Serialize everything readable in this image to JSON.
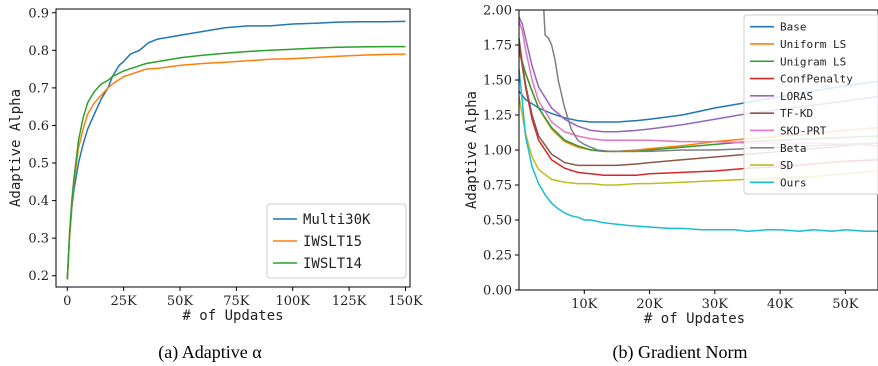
{
  "captions": [
    "(a) Adaptive α",
    "(b) Gradient Norm"
  ],
  "chart_data": [
    {
      "type": "line",
      "xlabel": "# of Updates",
      "ylabel": "Adaptive Alpha",
      "xlim": [
        -5000,
        152000
      ],
      "ylim": [
        0.17,
        0.91
      ],
      "xticks": [
        0,
        25000,
        50000,
        75000,
        100000,
        125000,
        150000
      ],
      "xtick_labels": [
        "0",
        "25K",
        "50K",
        "75K",
        "100K",
        "125K",
        "150K"
      ],
      "yticks": [
        0.2,
        0.3,
        0.4,
        0.5,
        0.6,
        0.7,
        0.8,
        0.9
      ],
      "ytick_labels": [
        "0.2",
        "0.3",
        "0.4",
        "0.5",
        "0.6",
        "0.7",
        "0.8",
        "0.9"
      ],
      "legend_position": "bottom-right",
      "series": [
        {
          "name": "Multi30K",
          "color": "#1f77b4",
          "x": [
            0,
            1000,
            2000,
            3000,
            5000,
            7000,
            9000,
            12000,
            15000,
            18000,
            20000,
            23000,
            25000,
            28000,
            32000,
            36000,
            40000,
            45000,
            50000,
            60000,
            70000,
            80000,
            90000,
            100000,
            110000,
            120000,
            130000,
            140000,
            150000
          ],
          "y": [
            0.19,
            0.3,
            0.38,
            0.43,
            0.5,
            0.55,
            0.59,
            0.63,
            0.67,
            0.7,
            0.73,
            0.76,
            0.77,
            0.79,
            0.8,
            0.82,
            0.83,
            0.835,
            0.84,
            0.85,
            0.86,
            0.865,
            0.865,
            0.87,
            0.872,
            0.875,
            0.876,
            0.876,
            0.877
          ]
        },
        {
          "name": "IWSLT15",
          "color": "#ff7f0e",
          "x": [
            0,
            1000,
            2000,
            3000,
            5000,
            7000,
            9000,
            12000,
            15000,
            18000,
            20000,
            25000,
            30000,
            35000,
            40000,
            45000,
            50000,
            60000,
            70000,
            80000,
            90000,
            100000,
            110000,
            120000,
            130000,
            140000,
            150000
          ],
          "y": [
            0.19,
            0.3,
            0.39,
            0.45,
            0.54,
            0.59,
            0.63,
            0.66,
            0.68,
            0.7,
            0.71,
            0.73,
            0.74,
            0.75,
            0.752,
            0.756,
            0.76,
            0.765,
            0.768,
            0.772,
            0.776,
            0.778,
            0.781,
            0.784,
            0.787,
            0.789,
            0.79
          ]
        },
        {
          "name": "IWSLT14",
          "color": "#2ca02c",
          "x": [
            0,
            1000,
            2000,
            3000,
            5000,
            7000,
            9000,
            12000,
            15000,
            18000,
            20000,
            25000,
            30000,
            35000,
            40000,
            45000,
            50000,
            60000,
            70000,
            80000,
            90000,
            100000,
            110000,
            120000,
            130000,
            140000,
            150000
          ],
          "y": [
            0.19,
            0.31,
            0.4,
            0.46,
            0.56,
            0.62,
            0.66,
            0.69,
            0.71,
            0.72,
            0.73,
            0.745,
            0.755,
            0.765,
            0.77,
            0.775,
            0.78,
            0.787,
            0.792,
            0.797,
            0.8,
            0.803,
            0.806,
            0.808,
            0.809,
            0.81,
            0.81
          ]
        }
      ]
    },
    {
      "type": "line",
      "xlabel": "# of Updates",
      "ylabel": "Adaptive Alpha",
      "xlim": [
        0,
        55000
      ],
      "ylim": [
        0.0,
        2.0
      ],
      "xticks": [
        10000,
        20000,
        30000,
        40000,
        50000
      ],
      "xtick_labels": [
        "10K",
        "20K",
        "30K",
        "40K",
        "50K"
      ],
      "yticks": [
        0.0,
        0.25,
        0.5,
        0.75,
        1.0,
        1.25,
        1.5,
        1.75,
        2.0
      ],
      "ytick_labels": [
        "0.00",
        "0.25",
        "0.50",
        "0.75",
        "1.00",
        "1.25",
        "1.50",
        "1.75",
        "2.00"
      ],
      "legend_position": "top-right",
      "series": [
        {
          "name": "Base",
          "color": "#1f77b4",
          "x": [
            0,
            500,
            1000,
            2000,
            3000,
            5000,
            7000,
            9000,
            11000,
            13000,
            15000,
            18000,
            20000,
            25000,
            30000,
            35000,
            40000,
            45000,
            50000,
            55000
          ],
          "y": [
            1.42,
            1.39,
            1.36,
            1.33,
            1.3,
            1.26,
            1.23,
            1.21,
            1.2,
            1.2,
            1.2,
            1.21,
            1.22,
            1.25,
            1.3,
            1.34,
            1.38,
            1.42,
            1.46,
            1.49
          ]
        },
        {
          "name": "Uniform LS",
          "color": "#ff7f0e",
          "x": [
            0,
            500,
            1000,
            2000,
            3000,
            5000,
            7000,
            9000,
            11000,
            13000,
            15000,
            18000,
            20000,
            25000,
            30000,
            35000,
            40000,
            45000,
            50000,
            55000
          ],
          "y": [
            1.7,
            1.62,
            1.55,
            1.42,
            1.3,
            1.15,
            1.06,
            1.02,
            1.0,
            0.99,
            0.99,
            1.0,
            1.01,
            1.03,
            1.06,
            1.08,
            1.1,
            1.12,
            1.14,
            1.16
          ]
        },
        {
          "name": "Unigram LS",
          "color": "#2ca02c",
          "x": [
            0,
            500,
            1000,
            2000,
            3000,
            5000,
            7000,
            9000,
            11000,
            13000,
            15000,
            18000,
            20000,
            25000,
            30000,
            35000,
            40000,
            45000,
            50000,
            55000
          ],
          "y": [
            1.72,
            1.63,
            1.55,
            1.42,
            1.3,
            1.16,
            1.07,
            1.03,
            1.0,
            0.99,
            0.99,
            0.99,
            1.0,
            1.02,
            1.04,
            1.06,
            1.07,
            1.08,
            1.09,
            1.1
          ]
        },
        {
          "name": "ConfPenalty",
          "color": "#d62728",
          "x": [
            0,
            500,
            1000,
            2000,
            3000,
            5000,
            7000,
            9000,
            11000,
            13000,
            15000,
            18000,
            20000,
            25000,
            30000,
            35000,
            40000,
            45000,
            50000,
            55000
          ],
          "y": [
            1.78,
            1.6,
            1.45,
            1.22,
            1.07,
            0.93,
            0.87,
            0.84,
            0.83,
            0.82,
            0.82,
            0.82,
            0.83,
            0.84,
            0.85,
            0.87,
            0.88,
            0.9,
            0.92,
            0.93
          ]
        },
        {
          "name": "LORAS",
          "color": "#9467bd",
          "x": [
            0,
            500,
            1000,
            2000,
            3000,
            5000,
            7000,
            9000,
            11000,
            13000,
            15000,
            18000,
            20000,
            25000,
            30000,
            35000,
            40000,
            45000,
            50000,
            55000
          ],
          "y": [
            1.95,
            1.9,
            1.8,
            1.6,
            1.45,
            1.3,
            1.22,
            1.17,
            1.14,
            1.13,
            1.13,
            1.14,
            1.15,
            1.18,
            1.22,
            1.26,
            1.29,
            1.32,
            1.35,
            1.38
          ]
        },
        {
          "name": "TF-KD",
          "color": "#8c564b",
          "x": [
            0,
            500,
            1000,
            2000,
            3000,
            5000,
            7000,
            9000,
            11000,
            13000,
            15000,
            18000,
            20000,
            25000,
            30000,
            35000,
            40000,
            45000,
            50000,
            55000
          ],
          "y": [
            1.8,
            1.62,
            1.47,
            1.25,
            1.1,
            0.97,
            0.91,
            0.89,
            0.89,
            0.89,
            0.89,
            0.9,
            0.91,
            0.93,
            0.95,
            0.97,
            0.99,
            1.01,
            1.03,
            1.05
          ]
        },
        {
          "name": "SKD-PRT",
          "color": "#e377c2",
          "x": [
            0,
            500,
            1000,
            2000,
            3000,
            5000,
            7000,
            9000,
            11000,
            13000,
            15000,
            18000,
            20000,
            25000,
            30000,
            35000,
            40000,
            45000,
            50000,
            55000
          ],
          "y": [
            1.92,
            1.85,
            1.72,
            1.5,
            1.35,
            1.2,
            1.13,
            1.1,
            1.08,
            1.07,
            1.07,
            1.07,
            1.07,
            1.06,
            1.06,
            1.05,
            1.05,
            1.05,
            1.04,
            1.03
          ]
        },
        {
          "name": "Beta",
          "color": "#7f7f7f",
          "x": [
            3800,
            4000,
            4500,
            5000,
            5500,
            6000,
            7000,
            8000,
            9000,
            10000,
            11000,
            12000,
            14000,
            17000,
            20000,
            25000,
            30000,
            35000,
            40000,
            45000,
            50000,
            55000
          ],
          "y": [
            2.0,
            1.82,
            1.8,
            1.75,
            1.65,
            1.5,
            1.3,
            1.15,
            1.07,
            1.04,
            1.02,
            1.0,
            0.99,
            0.99,
            0.99,
            1.0,
            1.0,
            1.01,
            1.02,
            1.03,
            1.04,
            1.05
          ]
        },
        {
          "name": "SD",
          "color": "#bcbd22",
          "x": [
            0,
            500,
            1000,
            2000,
            3000,
            5000,
            7000,
            9000,
            11000,
            13000,
            15000,
            18000,
            20000,
            25000,
            30000,
            35000,
            40000,
            45000,
            50000,
            55000
          ],
          "y": [
            1.38,
            1.25,
            1.12,
            0.95,
            0.86,
            0.79,
            0.77,
            0.76,
            0.76,
            0.75,
            0.75,
            0.76,
            0.76,
            0.77,
            0.78,
            0.79,
            0.8,
            0.81,
            0.83,
            0.85
          ]
        },
        {
          "name": "Ours",
          "color": "#17becf",
          "x": [
            0,
            500,
            1000,
            2000,
            3000,
            4000,
            5000,
            6000,
            7000,
            8000,
            9000,
            10000,
            11000,
            12000,
            13000,
            15000,
            17000,
            20000,
            23000,
            25000,
            28000,
            30000,
            33000,
            35000,
            38000,
            40000,
            43000,
            45000,
            48000,
            50000,
            53000,
            55000
          ],
          "y": [
            1.58,
            1.35,
            1.1,
            0.88,
            0.76,
            0.68,
            0.62,
            0.58,
            0.55,
            0.53,
            0.52,
            0.5,
            0.5,
            0.49,
            0.48,
            0.47,
            0.46,
            0.45,
            0.44,
            0.44,
            0.43,
            0.43,
            0.43,
            0.42,
            0.43,
            0.43,
            0.42,
            0.43,
            0.42,
            0.43,
            0.42,
            0.42
          ]
        }
      ]
    }
  ]
}
